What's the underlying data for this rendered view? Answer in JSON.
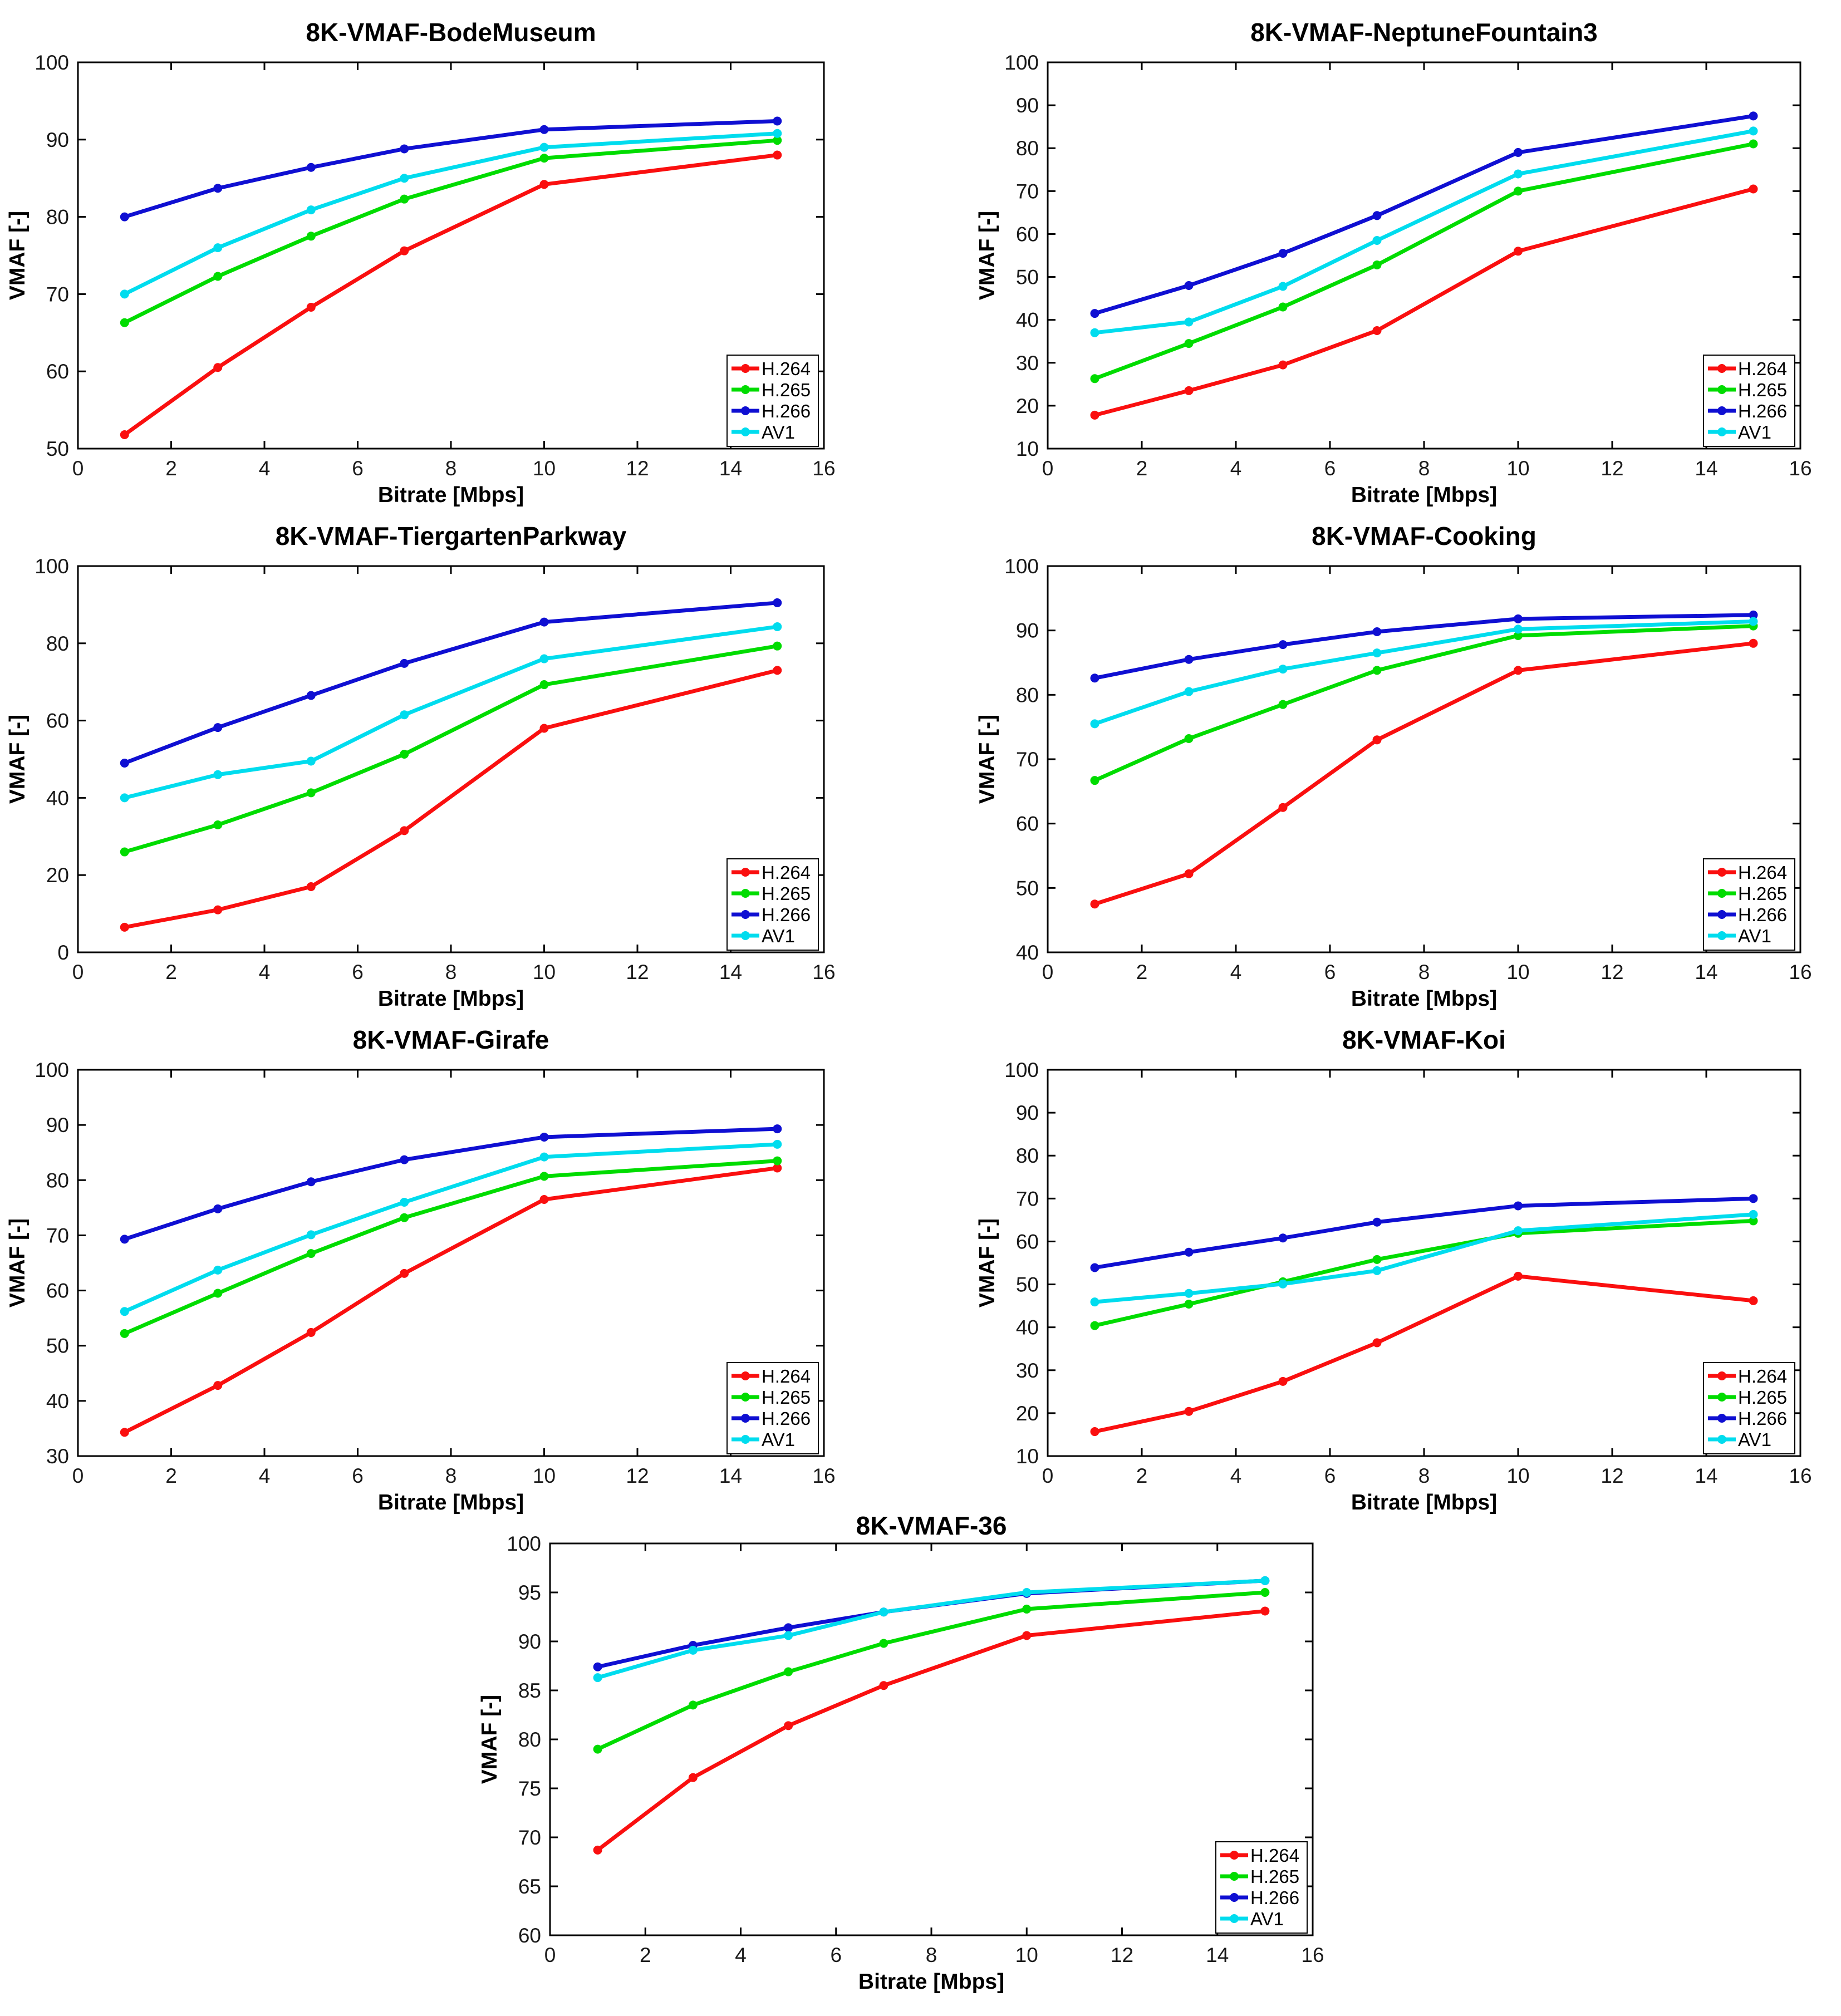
{
  "figure": {
    "background": "#ffffff",
    "series_colors": {
      "H.264": "#fa0f0f",
      "H.265": "#00dc00",
      "H.266": "#0f0fd2",
      "AV1": "#00dcee"
    }
  },
  "chart_data": [
    {
      "type": "line",
      "title": "8K-VMAF-BodeMuseum",
      "xlabel": "Bitrate [Mbps]",
      "ylabel": "VMAF [-]",
      "x": [
        1,
        3,
        5,
        7,
        10,
        15
      ],
      "xlim": [
        0,
        16
      ],
      "xtick_step": 2,
      "ylim": [
        50,
        100
      ],
      "ytick_step": 10,
      "grid": false,
      "legend_position": "southeast",
      "legend": [
        "H.264",
        "H.265",
        "H.266",
        "AV1"
      ],
      "series": [
        {
          "name": "H.264",
          "color": "#fa0f0f",
          "values": [
            51.8,
            60.5,
            68.3,
            75.6,
            84.2,
            88.0
          ]
        },
        {
          "name": "H.265",
          "color": "#00dc00",
          "values": [
            66.3,
            72.3,
            77.5,
            82.3,
            87.6,
            89.9
          ]
        },
        {
          "name": "H.266",
          "color": "#0f0fd2",
          "values": [
            80.0,
            83.7,
            86.4,
            88.8,
            91.3,
            92.4
          ]
        },
        {
          "name": "AV1",
          "color": "#00dcee",
          "values": [
            70.0,
            76.0,
            80.9,
            85.0,
            89.0,
            90.8
          ]
        }
      ]
    },
    {
      "type": "line",
      "title": "8K-VMAF-NeptuneFountain3",
      "xlabel": "Bitrate [Mbps]",
      "ylabel": "VMAF [-]",
      "x": [
        1,
        3,
        5,
        7,
        10,
        15
      ],
      "xlim": [
        0,
        16
      ],
      "xtick_step": 2,
      "ylim": [
        10,
        100
      ],
      "ytick_step": 10,
      "grid": false,
      "legend_position": "southeast",
      "legend": [
        "H.264",
        "H.265",
        "H.266",
        "AV1"
      ],
      "series": [
        {
          "name": "H.264",
          "color": "#fa0f0f",
          "values": [
            17.8,
            23.5,
            29.5,
            37.5,
            56.0,
            70.5
          ]
        },
        {
          "name": "H.265",
          "color": "#00dc00",
          "values": [
            26.3,
            34.5,
            43.0,
            52.8,
            70.0,
            81.0
          ]
        },
        {
          "name": "H.266",
          "color": "#0f0fd2",
          "values": [
            41.5,
            48.0,
            55.5,
            64.3,
            79.0,
            87.5
          ]
        },
        {
          "name": "AV1",
          "color": "#00dcee",
          "values": [
            37.0,
            39.5,
            47.8,
            58.5,
            74.0,
            84.0
          ]
        }
      ]
    },
    {
      "type": "line",
      "title": "8K-VMAF-TiergartenParkway",
      "xlabel": "Bitrate [Mbps]",
      "ylabel": "VMAF [-]",
      "x": [
        1,
        3,
        5,
        7,
        10,
        15
      ],
      "xlim": [
        0,
        16
      ],
      "xtick_step": 2,
      "ylim": [
        0,
        100
      ],
      "ytick_step": 20,
      "grid": false,
      "legend_position": "southeast",
      "legend": [
        "H.264",
        "H.265",
        "H.266",
        "AV1"
      ],
      "series": [
        {
          "name": "H.264",
          "color": "#fa0f0f",
          "values": [
            6.5,
            11.0,
            17.0,
            31.5,
            58.0,
            73.0
          ]
        },
        {
          "name": "H.265",
          "color": "#00dc00",
          "values": [
            26.0,
            33.0,
            41.3,
            51.3,
            69.3,
            79.3
          ]
        },
        {
          "name": "H.266",
          "color": "#0f0fd2",
          "values": [
            49.0,
            58.2,
            66.5,
            74.8,
            85.5,
            90.5
          ]
        },
        {
          "name": "AV1",
          "color": "#00dcee",
          "values": [
            40.0,
            46.0,
            49.5,
            61.5,
            76.0,
            84.3
          ]
        }
      ]
    },
    {
      "type": "line",
      "title": "8K-VMAF-Cooking",
      "xlabel": "Bitrate [Mbps]",
      "ylabel": "VMAF [-]",
      "x": [
        1,
        3,
        5,
        7,
        10,
        15
      ],
      "xlim": [
        0,
        16
      ],
      "xtick_step": 2,
      "ylim": [
        40,
        100
      ],
      "ytick_step": 10,
      "grid": false,
      "legend_position": "southeast",
      "legend": [
        "H.264",
        "H.265",
        "H.266",
        "AV1"
      ],
      "series": [
        {
          "name": "H.264",
          "color": "#fa0f0f",
          "values": [
            47.5,
            52.2,
            62.5,
            73.0,
            83.8,
            88.0
          ]
        },
        {
          "name": "H.265",
          "color": "#00dc00",
          "values": [
            66.7,
            73.2,
            78.5,
            83.8,
            89.2,
            90.7
          ]
        },
        {
          "name": "H.266",
          "color": "#0f0fd2",
          "values": [
            82.6,
            85.5,
            87.8,
            89.8,
            91.8,
            92.4
          ]
        },
        {
          "name": "AV1",
          "color": "#00dcee",
          "values": [
            75.5,
            80.5,
            84.0,
            86.5,
            90.2,
            91.4
          ]
        }
      ]
    },
    {
      "type": "line",
      "title": "8K-VMAF-Girafe",
      "xlabel": "Bitrate [Mbps]",
      "ylabel": "VMAF [-]",
      "x": [
        1,
        3,
        5,
        7,
        10,
        15
      ],
      "xlim": [
        0,
        16
      ],
      "xtick_step": 2,
      "ylim": [
        30,
        100
      ],
      "ytick_step": 10,
      "grid": false,
      "legend_position": "southeast",
      "legend": [
        "H.264",
        "H.265",
        "H.266",
        "AV1"
      ],
      "series": [
        {
          "name": "H.264",
          "color": "#fa0f0f",
          "values": [
            34.3,
            42.8,
            52.4,
            63.1,
            76.5,
            82.2
          ]
        },
        {
          "name": "H.265",
          "color": "#00dc00",
          "values": [
            52.2,
            59.5,
            66.7,
            73.2,
            80.7,
            83.5
          ]
        },
        {
          "name": "H.266",
          "color": "#0f0fd2",
          "values": [
            69.3,
            74.8,
            79.7,
            83.7,
            87.8,
            89.3
          ]
        },
        {
          "name": "AV1",
          "color": "#00dcee",
          "values": [
            56.2,
            63.7,
            70.1,
            76.0,
            84.2,
            86.5
          ]
        }
      ]
    },
    {
      "type": "line",
      "title": "8K-VMAF-Koi",
      "xlabel": "Bitrate [Mbps]",
      "ylabel": "VMAF [-]",
      "x": [
        1,
        3,
        5,
        7,
        10,
        15
      ],
      "xlim": [
        0,
        16
      ],
      "xtick_step": 2,
      "ylim": [
        10,
        100
      ],
      "ytick_step": 10,
      "grid": false,
      "legend_position": "southeast",
      "legend": [
        "H.264",
        "H.265",
        "H.266",
        "AV1"
      ],
      "series": [
        {
          "name": "H.264",
          "color": "#fa0f0f",
          "values": [
            15.7,
            20.4,
            27.4,
            36.4,
            51.9,
            46.2
          ]
        },
        {
          "name": "H.265",
          "color": "#00dc00",
          "values": [
            40.4,
            45.4,
            50.6,
            55.8,
            61.9,
            64.8
          ]
        },
        {
          "name": "H.266",
          "color": "#0f0fd2",
          "values": [
            53.9,
            57.5,
            60.8,
            64.5,
            68.3,
            70.0
          ]
        },
        {
          "name": "AV1",
          "color": "#00dcee",
          "values": [
            45.9,
            47.9,
            50.1,
            53.2,
            62.5,
            66.3
          ]
        }
      ]
    },
    {
      "type": "line",
      "title": "8K-VMAF-36",
      "xlabel": "Bitrate [Mbps]",
      "ylabel": "VMAF [-]",
      "x": [
        1,
        3,
        5,
        7,
        10,
        15
      ],
      "xlim": [
        0,
        16
      ],
      "xtick_step": 2,
      "ylim": [
        60,
        100
      ],
      "ytick_step": 5,
      "grid": false,
      "legend_position": "southeast",
      "legend": [
        "H.264",
        "H.265",
        "H.266",
        "AV1"
      ],
      "series": [
        {
          "name": "H.264",
          "color": "#fa0f0f",
          "values": [
            68.7,
            76.1,
            81.4,
            85.5,
            90.6,
            93.1
          ]
        },
        {
          "name": "H.265",
          "color": "#00dc00",
          "values": [
            79.0,
            83.5,
            86.9,
            89.8,
            93.3,
            95.0
          ]
        },
        {
          "name": "H.266",
          "color": "#0f0fd2",
          "values": [
            87.4,
            89.6,
            91.4,
            93.0,
            94.9,
            96.2
          ]
        },
        {
          "name": "AV1",
          "color": "#00dcee",
          "values": [
            86.3,
            89.1,
            90.6,
            93.0,
            95.0,
            96.2
          ]
        }
      ]
    }
  ]
}
